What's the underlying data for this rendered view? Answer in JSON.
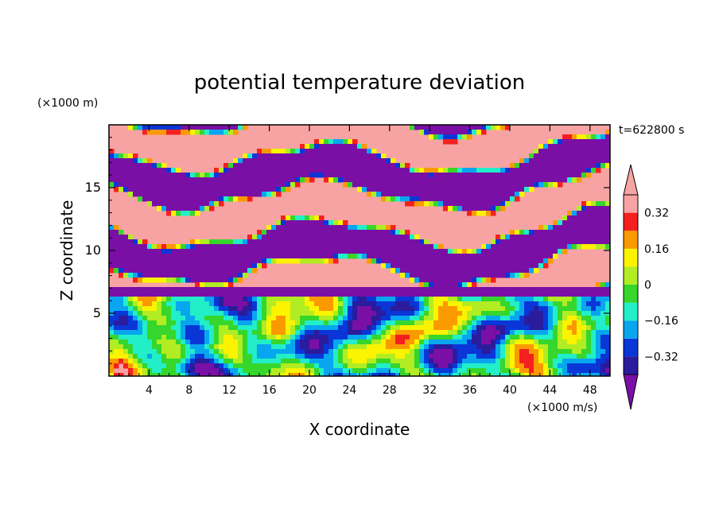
{
  "chart_data": {
    "type": "heatmap",
    "title": "potential temperature deviation",
    "xlabel": "X coordinate",
    "ylabel": "Z coordinate",
    "x_unit": "(×1000 m/s)",
    "y_unit": "(×1000 m)",
    "time_label": "t=622800 s",
    "xlim": [
      0,
      50
    ],
    "ylim": [
      0,
      20
    ],
    "x_ticks": [
      4,
      8,
      12,
      16,
      20,
      24,
      28,
      32,
      36,
      40,
      44,
      48
    ],
    "y_ticks": [
      5,
      10,
      15
    ],
    "colorbar": {
      "levels": [
        -0.4,
        -0.32,
        -0.24,
        -0.16,
        -0.08,
        0,
        0.08,
        0.16,
        0.24,
        0.32,
        0.4
      ],
      "labeled_levels": [
        {
          "value": 0.32,
          "label": "0.32"
        },
        {
          "value": 0.16,
          "label": "0.16"
        },
        {
          "value": 0,
          "label": "0"
        },
        {
          "value": -0.16,
          "label": "−0.16"
        },
        {
          "value": -0.32,
          "label": "−0.32"
        }
      ],
      "colors": [
        "#7a0fa6",
        "#2a1c9c",
        "#0a36d8",
        "#08a6ef",
        "#22eec8",
        "#36d62c",
        "#b2ec22",
        "#fbf300",
        "#fb9a00",
        "#f42020",
        "#f7a3a3"
      ],
      "extend": "both"
    }
  }
}
